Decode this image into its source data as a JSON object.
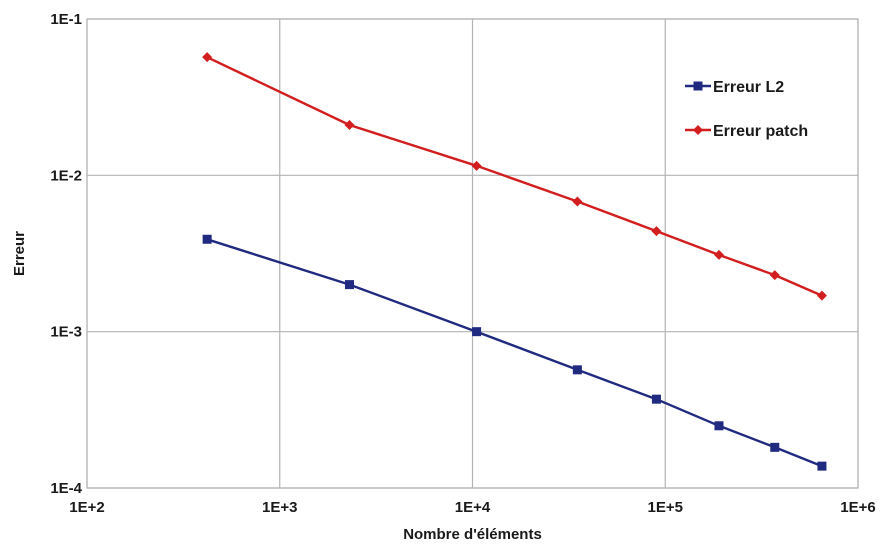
{
  "chart_data": {
    "type": "line",
    "xscale": "log",
    "yscale": "log",
    "xlim": [
      100,
      1000000
    ],
    "ylim": [
      0.0001,
      0.1
    ],
    "xticks": [
      100,
      1000,
      10000,
      100000,
      1000000
    ],
    "yticks": [
      0.0001,
      0.001,
      0.01,
      0.1
    ],
    "xtick_labels": [
      "1E+2",
      "1E+3",
      "1E+4",
      "1E+5",
      "1E+6"
    ],
    "ytick_labels": [
      "1E-4",
      "1E-3",
      "1E-2",
      "1E-1"
    ],
    "xlabel": "Nombre d'éléments",
    "ylabel": "Erreur",
    "grid": true,
    "legend_position": "top-right",
    "series": [
      {
        "name": "Erreur L2",
        "color": "#1f2a80",
        "marker": "square",
        "x": [
          420,
          2300,
          10500,
          35000,
          90000,
          190000,
          370000,
          650000
        ],
        "y": [
          0.0039,
          0.002,
          0.001,
          0.00057,
          0.00037,
          0.00025,
          0.000182,
          0.000138
        ]
      },
      {
        "name": "Erreur patch",
        "color": "#d21e1e",
        "marker": "diamond",
        "x": [
          420,
          2300,
          10500,
          35000,
          90000,
          190000,
          370000,
          650000
        ],
        "y": [
          0.057,
          0.021,
          0.0115,
          0.0068,
          0.0044,
          0.0031,
          0.0023,
          0.0017
        ]
      }
    ]
  }
}
